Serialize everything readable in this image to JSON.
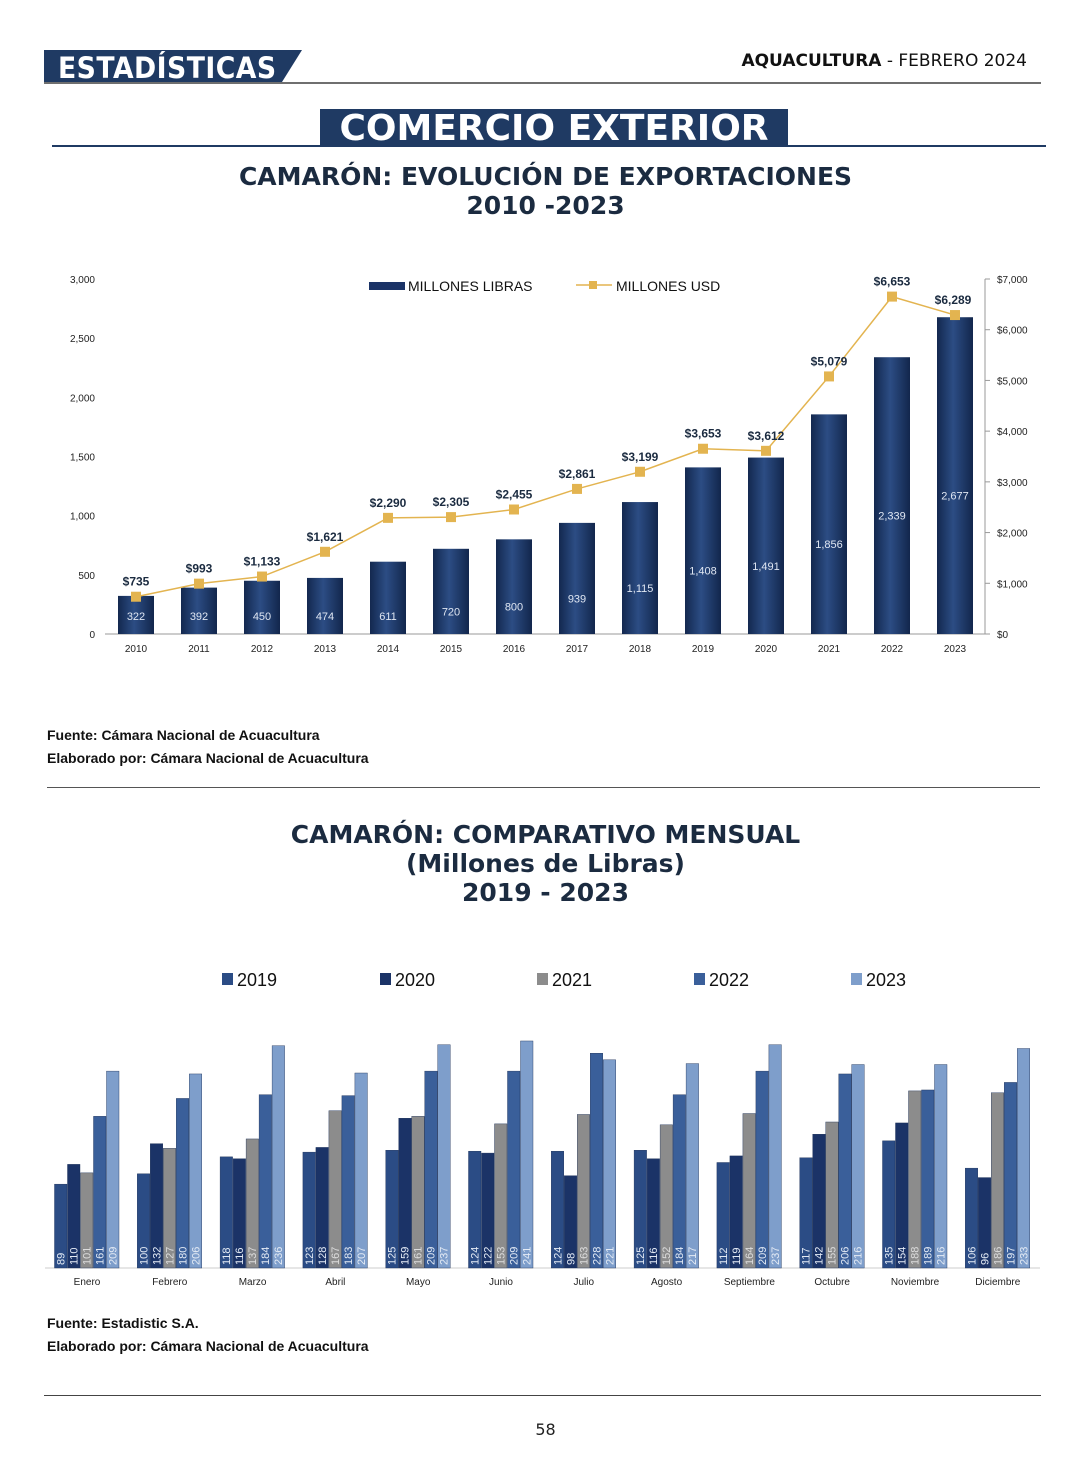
{
  "header": {
    "section": "ESTADÍSTICAS",
    "magazine": "AQUACULTURA",
    "issue": " - FEBRERO 2024"
  },
  "banner": "COMERCIO EXTERIOR",
  "colors": {
    "navy": "#1f3a63",
    "line": "#e3b450",
    "y2019": "#2b4c85",
    "y2020": "#1b3367",
    "y2021": "#8c8c8c",
    "y2022": "#3a5f9a",
    "y2023": "#7e9ecb"
  },
  "chart1": {
    "title_line1": "CAMARÓN: EVOLUCIÓN DE EXPORTACIONES",
    "title_line2": "2010 -2023",
    "source": "Fuente: Cámara Nacional de Acuacultura",
    "made_by": "Elaborado por: Cámara Nacional de Acuacultura"
  },
  "chart2": {
    "title_line1": "CAMARÓN: COMPARATIVO MENSUAL",
    "title_line2": "(Millones de Libras)",
    "title_line3": "2019 - 2023",
    "source": "Fuente: Estadistic S.A.",
    "made_by": "Elaborado por: Cámara Nacional de Acuacultura"
  },
  "page_number": "58",
  "chart_data": [
    {
      "type": "bar",
      "categories": [
        "2010",
        "2011",
        "2012",
        "2013",
        "2014",
        "2015",
        "2016",
        "2017",
        "2018",
        "2019",
        "2020",
        "2021",
        "2022",
        "2023"
      ],
      "series": [
        {
          "name": "MILLONES LIBRAS",
          "type": "bar",
          "axis": "left",
          "values": [
            322,
            392,
            450,
            474,
            611,
            720,
            800,
            939,
            1115,
            1408,
            1491,
            1856,
            2339,
            2677
          ],
          "labels": [
            "322",
            "392",
            "450",
            "474",
            "611",
            "720",
            "800",
            "939",
            "1,115",
            "1,408",
            "1,491",
            "1,856",
            "2,339",
            "2,677"
          ]
        },
        {
          "name": "MILLONES USD",
          "type": "line",
          "axis": "right",
          "values": [
            735,
            993,
            1133,
            1621,
            2290,
            2305,
            2455,
            2861,
            3199,
            3653,
            3612,
            5079,
            6653,
            6289
          ],
          "labels": [
            "$735",
            "$993",
            "$1,133",
            "$1,621",
            "$2,290",
            "$2,305",
            "$2,455",
            "$2,861",
            "$3,199",
            "$3,653",
            "$3,612",
            "$5,079",
            "$6,653",
            "$6,289"
          ]
        }
      ],
      "ylim": [
        0,
        3000
      ],
      "yticks": [
        "0",
        "500",
        "1,000",
        "1,500",
        "2,000",
        "2,500",
        "3,000"
      ],
      "y2lim": [
        0,
        7000
      ],
      "y2ticks": [
        "$0",
        "$1,000",
        "$2,000",
        "$3,000",
        "$4,000",
        "$5,000",
        "$6,000",
        "$7,000"
      ],
      "legend": "top-center",
      "grid": false
    },
    {
      "type": "bar",
      "categories": [
        "Enero",
        "Febrero",
        "Marzo",
        "Abril",
        "Mayo",
        "Junio",
        "Julio",
        "Agosto",
        "Septiembre",
        "Octubre",
        "Noviembre",
        "Diciembre"
      ],
      "series": [
        {
          "name": "2019",
          "values": [
            89,
            100,
            118,
            123,
            125,
            124,
            124,
            125,
            112,
            117,
            135,
            106
          ]
        },
        {
          "name": "2020",
          "values": [
            110,
            132,
            116,
            128,
            159,
            122,
            98,
            116,
            119,
            142,
            154,
            96
          ]
        },
        {
          "name": "2021",
          "values": [
            101,
            127,
            137,
            167,
            161,
            153,
            163,
            152,
            164,
            155,
            188,
            186
          ]
        },
        {
          "name": "2022",
          "values": [
            161,
            180,
            184,
            183,
            209,
            209,
            228,
            184,
            209,
            206,
            189,
            197
          ]
        },
        {
          "name": "2023",
          "values": [
            209,
            206,
            236,
            207,
            237,
            241,
            221,
            217,
            237,
            216,
            216,
            233
          ]
        }
      ],
      "legend": "top",
      "grid": false
    }
  ]
}
